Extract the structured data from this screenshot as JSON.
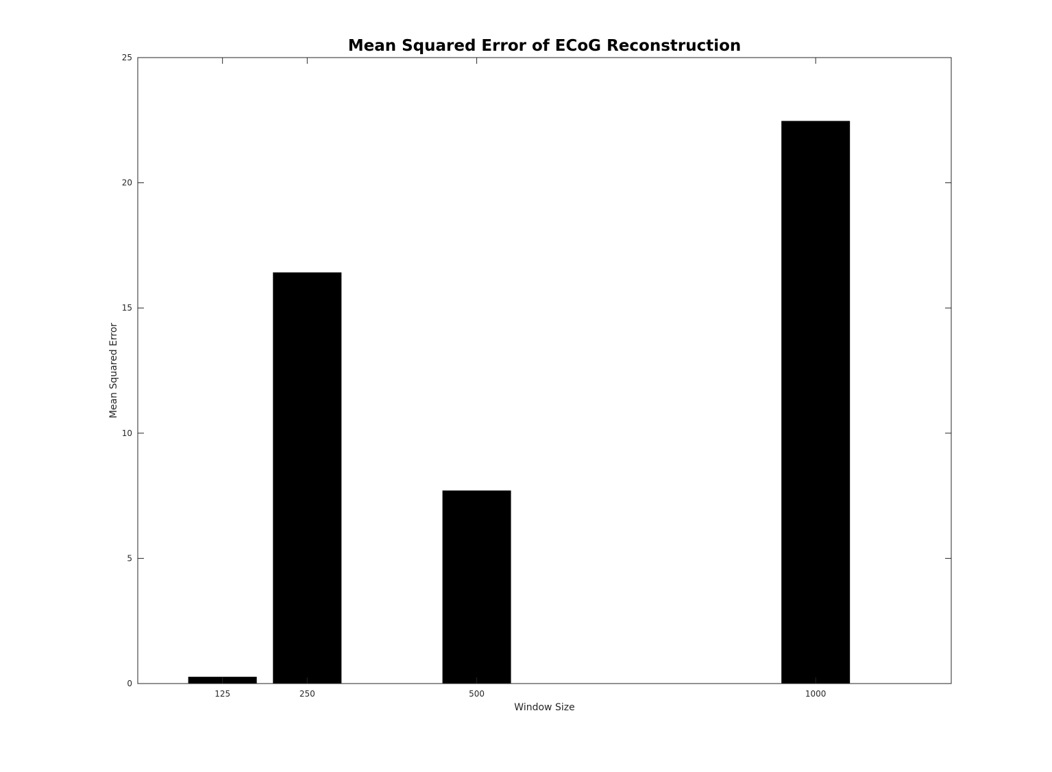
{
  "chart_data": {
    "type": "bar",
    "title": "Mean Squared Error of ECoG Reconstruction",
    "xlabel": "Window Size",
    "ylabel": "Mean Squared Error",
    "x": [
      125,
      250,
      500,
      1000
    ],
    "categories": [
      "125",
      "250",
      "500",
      "1000"
    ],
    "values": [
      0.27,
      16.42,
      7.71,
      22.47
    ],
    "xlim": [
      0,
      1200
    ],
    "ylim": [
      0,
      25
    ],
    "yticks": [
      0,
      5,
      10,
      15,
      20,
      25
    ],
    "ytick_labels": [
      "0",
      "5",
      "10",
      "15",
      "20",
      "25"
    ],
    "bar_color": "#000000",
    "grid": false
  }
}
